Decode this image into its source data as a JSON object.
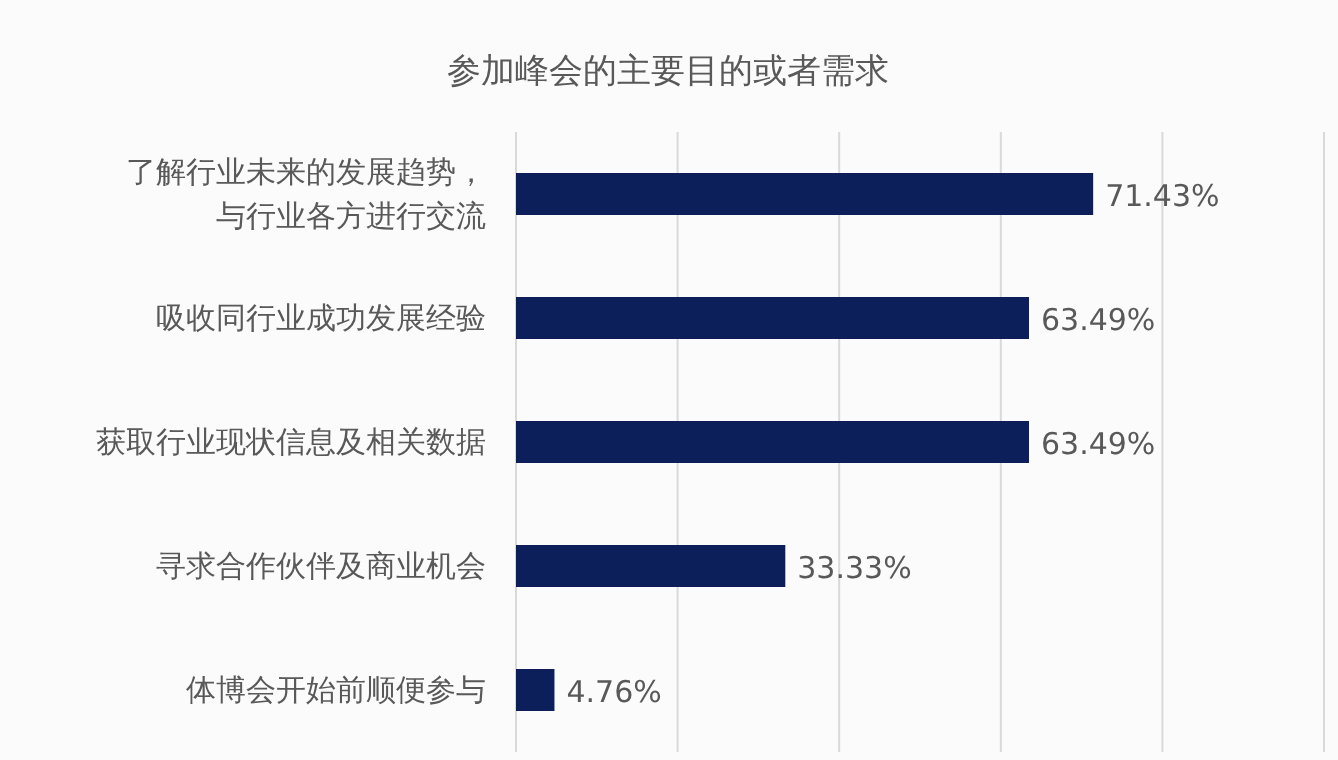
{
  "chart_data": {
    "type": "bar",
    "orientation": "horizontal",
    "title": "参加峰会的主要目的或者需求",
    "categories": [
      "了解行业未来的发展趋势，与行业各方进行交流",
      "吸收同行业成功发展经验",
      "获取行业现状信息及相关数据",
      "寻求合作伙伴及商业机会",
      "体博会开始前顺便参与"
    ],
    "values": [
      71.43,
      63.49,
      63.49,
      33.33,
      4.76
    ],
    "value_labels": [
      "71.43%",
      "63.49%",
      "63.49%",
      "33.33%",
      "4.76%"
    ],
    "color": "#0c1f5b",
    "xlim": [
      0,
      100
    ],
    "xticks": [
      {
        "value": 0,
        "label": null
      },
      {
        "value": 20,
        "label": null
      },
      {
        "value": 40,
        "label": null
      },
      {
        "value": 60,
        "label": null
      },
      {
        "value": 80,
        "label": null
      },
      {
        "value": 100,
        "label": null
      }
    ],
    "grid": "x"
  }
}
